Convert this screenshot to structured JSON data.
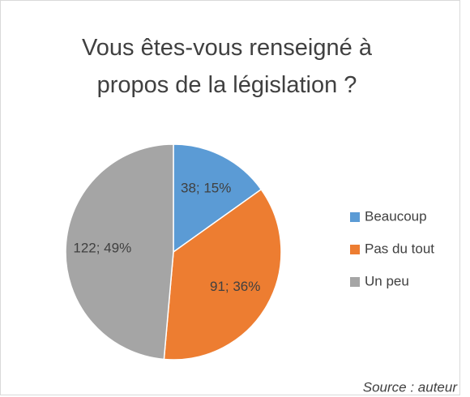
{
  "chart_data": {
    "type": "pie",
    "title": "Vous êtes-vous renseigné à propos de la législation ?",
    "categories": [
      "Beaucoup",
      "Pas du tout",
      "Un peu"
    ],
    "values": [
      38,
      91,
      122
    ],
    "value_labels": [
      "38; 15%",
      "91; 36%",
      "122; 49%"
    ],
    "colors": [
      "#5b9bd5",
      "#ed7d31",
      "#a5a5a5"
    ],
    "legend": "right",
    "annotation": "Source : auteur"
  }
}
